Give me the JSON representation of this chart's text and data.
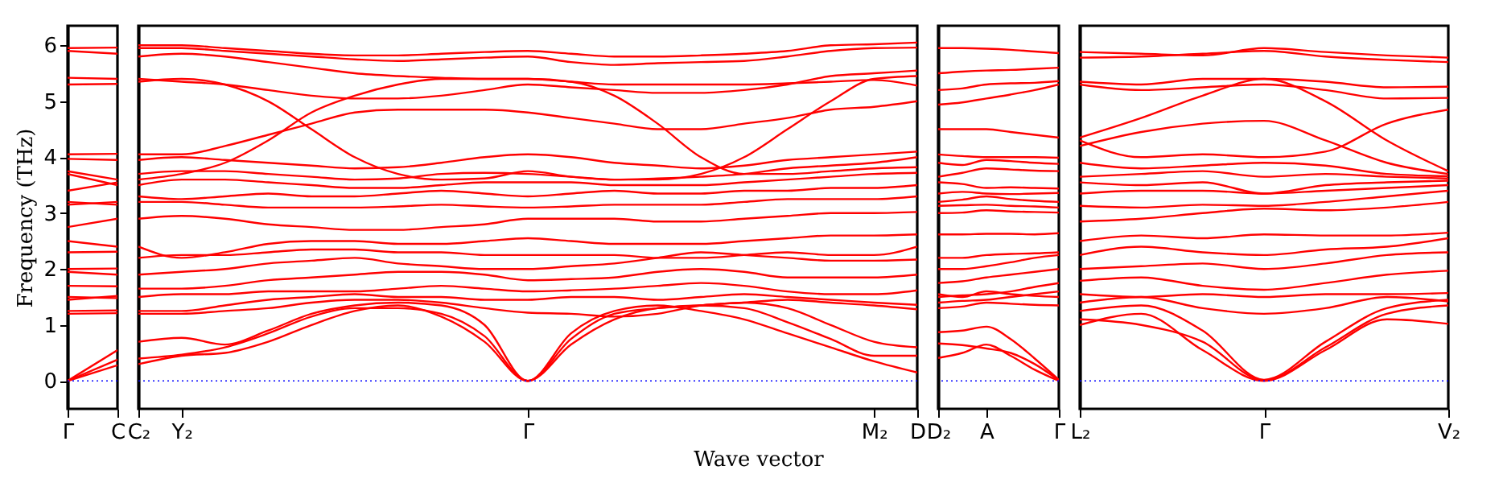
{
  "chart_data": [
    {
      "type": "line",
      "ylabel": "Frequency (THz)",
      "categories": [
        "Γ",
        "C"
      ],
      "ylim": [
        -0.5,
        6.35
      ],
      "yticks": [
        0,
        1,
        2,
        3,
        4,
        5,
        6
      ],
      "marker": "none",
      "ref_lines": [
        {
          "axis": "y",
          "value": 0,
          "color": "#0000ff",
          "line_style": "dotted"
        }
      ],
      "series": [
        {
          "color": "#ff0000",
          "values": [
            0,
            0.28
          ]
        },
        {
          "color": "#ff0000",
          "values": [
            0,
            0.38
          ]
        },
        {
          "color": "#ff0000",
          "values": [
            0,
            0.55
          ]
        },
        {
          "color": "#ff0000",
          "values": [
            1.2,
            1.21
          ]
        },
        {
          "color": "#ff0000",
          "values": [
            1.25,
            1.26
          ]
        },
        {
          "color": "#ff0000",
          "values": [
            1.45,
            1.52
          ]
        },
        {
          "color": "#ff0000",
          "values": [
            1.5,
            1.48
          ]
        },
        {
          "color": "#ff0000",
          "values": [
            1.7,
            1.69
          ]
        },
        {
          "color": "#ff0000",
          "values": [
            1.95,
            1.9
          ]
        },
        {
          "color": "#ff0000",
          "values": [
            2.0,
            2.01
          ]
        },
        {
          "color": "#ff0000",
          "values": [
            2.3,
            2.31
          ]
        },
        {
          "color": "#ff0000",
          "values": [
            2.5,
            2.4
          ]
        },
        {
          "color": "#ff0000",
          "values": [
            2.75,
            2.9
          ]
        },
        {
          "color": "#ff0000",
          "values": [
            3.15,
            3.2
          ]
        },
        {
          "color": "#ff0000",
          "values": [
            3.2,
            3.15
          ]
        },
        {
          "color": "#ff0000",
          "values": [
            3.4,
            3.55
          ]
        },
        {
          "color": "#ff0000",
          "values": [
            3.7,
            3.5
          ]
        },
        {
          "color": "#ff0000",
          "values": [
            3.75,
            3.6
          ]
        },
        {
          "color": "#ff0000",
          "values": [
            3.97,
            3.95
          ]
        },
        {
          "color": "#ff0000",
          "values": [
            4.05,
            4.06
          ]
        },
        {
          "color": "#ff0000",
          "values": [
            5.3,
            5.31
          ]
        },
        {
          "color": "#ff0000",
          "values": [
            5.42,
            5.4
          ]
        },
        {
          "color": "#ff0000",
          "values": [
            5.9,
            5.85
          ]
        },
        {
          "color": "#ff0000",
          "values": [
            5.95,
            5.96
          ]
        }
      ]
    },
    {
      "type": "line",
      "xlabel": "Wave vector",
      "tick_labels": "x",
      "categories": [
        "C₂",
        "Y₂",
        null,
        null,
        null,
        null,
        null,
        null,
        null,
        "Γ",
        null,
        null,
        null,
        null,
        null,
        null,
        null,
        "M₂",
        "D"
      ],
      "ylim": [
        -0.5,
        6.35
      ],
      "marker": "none",
      "ref_lines": [
        {
          "axis": "y",
          "value": 0,
          "color": "#0000ff",
          "line_style": "dotted"
        }
      ],
      "series": [
        {
          "color": "#ff0000",
          "values": [
            0.3,
            0.45,
            0.5,
            0.7,
            1.0,
            1.25,
            1.35,
            1.15,
            0.7,
            0,
            0.85,
            1.25,
            1.35,
            1.25,
            1.1,
            0.85,
            0.6,
            0.35,
            0.15
          ]
        },
        {
          "color": "#ff0000",
          "values": [
            0.4,
            0.47,
            0.6,
            0.85,
            1.15,
            1.3,
            1.3,
            1.2,
            0.8,
            0,
            0.75,
            1.2,
            1.3,
            1.35,
            1.3,
            1.05,
            0.75,
            0.45,
            0.45
          ]
        },
        {
          "color": "#ff0000",
          "values": [
            0.7,
            0.77,
            0.65,
            0.9,
            1.2,
            1.35,
            1.4,
            1.35,
            1.0,
            0,
            0.65,
            1.1,
            1.3,
            1.35,
            1.4,
            1.3,
            1.0,
            0.7,
            0.6
          ]
        },
        {
          "color": "#ff0000",
          "values": [
            1.2,
            1.2,
            1.25,
            1.3,
            1.4,
            1.45,
            1.45,
            1.4,
            1.3,
            1.22,
            1.2,
            1.15,
            1.2,
            1.35,
            1.4,
            1.45,
            1.4,
            1.35,
            1.28
          ]
        },
        {
          "color": "#ff0000",
          "values": [
            1.25,
            1.25,
            1.35,
            1.45,
            1.5,
            1.55,
            1.5,
            1.5,
            1.45,
            1.45,
            1.5,
            1.5,
            1.45,
            1.5,
            1.55,
            1.5,
            1.45,
            1.4,
            1.36
          ]
        },
        {
          "color": "#ff0000",
          "values": [
            1.5,
            1.55,
            1.55,
            1.6,
            1.6,
            1.6,
            1.65,
            1.7,
            1.65,
            1.6,
            1.62,
            1.65,
            1.7,
            1.75,
            1.7,
            1.6,
            1.55,
            1.55,
            1.62
          ]
        },
        {
          "color": "#ff0000",
          "values": [
            1.65,
            1.65,
            1.7,
            1.8,
            1.85,
            1.9,
            1.95,
            1.95,
            1.9,
            1.8,
            1.82,
            1.85,
            1.95,
            2.0,
            1.95,
            1.85,
            1.85,
            1.85,
            1.9
          ]
        },
        {
          "color": "#ff0000",
          "values": [
            1.9,
            1.95,
            2.0,
            2.1,
            2.15,
            2.2,
            2.1,
            2.05,
            2.0,
            2.0,
            2.05,
            2.1,
            2.2,
            2.3,
            2.25,
            2.2,
            2.15,
            2.15,
            2.17
          ]
        },
        {
          "color": "#ff0000",
          "values": [
            2.2,
            2.25,
            2.25,
            2.3,
            2.35,
            2.35,
            2.3,
            2.3,
            2.25,
            2.25,
            2.25,
            2.25,
            2.2,
            2.2,
            2.25,
            2.3,
            2.25,
            2.25,
            2.4
          ]
        },
        {
          "color": "#ff0000",
          "values": [
            2.4,
            2.2,
            2.3,
            2.45,
            2.5,
            2.5,
            2.45,
            2.45,
            2.5,
            2.55,
            2.5,
            2.45,
            2.45,
            2.45,
            2.5,
            2.55,
            2.6,
            2.6,
            2.62
          ]
        },
        {
          "color": "#ff0000",
          "values": [
            2.9,
            2.95,
            2.9,
            2.8,
            2.75,
            2.7,
            2.7,
            2.75,
            2.8,
            2.9,
            2.9,
            2.9,
            2.85,
            2.85,
            2.9,
            2.95,
            3.0,
            3.0,
            3.02
          ]
        },
        {
          "color": "#ff0000",
          "values": [
            3.2,
            3.2,
            3.15,
            3.1,
            3.1,
            3.1,
            3.12,
            3.15,
            3.12,
            3.1,
            3.12,
            3.15,
            3.15,
            3.15,
            3.2,
            3.25,
            3.25,
            3.25,
            3.3
          ]
        },
        {
          "color": "#ff0000",
          "values": [
            3.3,
            3.25,
            3.3,
            3.35,
            3.3,
            3.3,
            3.35,
            3.4,
            3.35,
            3.3,
            3.35,
            3.4,
            3.35,
            3.35,
            3.4,
            3.4,
            3.45,
            3.45,
            3.5
          ]
        },
        {
          "color": "#ff0000",
          "values": [
            3.5,
            3.6,
            3.6,
            3.55,
            3.5,
            3.45,
            3.45,
            3.5,
            3.55,
            3.55,
            3.55,
            3.5,
            3.5,
            3.5,
            3.55,
            3.6,
            3.65,
            3.7,
            3.72
          ]
        },
        {
          "color": "#ff0000",
          "values": [
            3.7,
            3.75,
            3.75,
            3.7,
            3.65,
            3.6,
            3.62,
            3.7,
            3.72,
            3.7,
            3.65,
            3.6,
            3.62,
            3.65,
            3.7,
            3.8,
            3.85,
            3.9,
            4.0
          ]
        },
        {
          "color": "#ff0000",
          "values": [
            3.95,
            4.0,
            3.95,
            3.9,
            3.85,
            3.8,
            3.82,
            3.9,
            4.0,
            4.05,
            4.0,
            3.9,
            3.85,
            3.8,
            3.85,
            3.95,
            4.0,
            4.05,
            4.1
          ]
        },
        {
          "color": "#ff0000",
          "values": [
            4.05,
            4.05,
            4.2,
            4.4,
            4.6,
            4.8,
            4.85,
            4.85,
            4.85,
            4.8,
            4.7,
            4.6,
            4.5,
            4.5,
            4.6,
            4.7,
            4.85,
            4.9,
            5.0
          ]
        },
        {
          "color": "#ff0000",
          "values": [
            5.35,
            5.4,
            5.3,
            5.0,
            4.5,
            4.0,
            3.7,
            3.6,
            3.62,
            3.75,
            3.65,
            3.6,
            3.6,
            3.7,
            4.0,
            4.5,
            5.0,
            5.4,
            5.45
          ]
        },
        {
          "color": "#ff0000",
          "values": [
            3.6,
            3.7,
            3.9,
            4.3,
            4.8,
            5.1,
            5.3,
            5.4,
            5.4,
            5.4,
            5.35,
            5.1,
            4.6,
            4.0,
            3.7,
            3.7,
            3.75,
            3.8,
            3.82
          ]
        },
        {
          "color": "#ff0000",
          "values": [
            5.4,
            5.35,
            5.3,
            5.2,
            5.1,
            5.05,
            5.05,
            5.1,
            5.2,
            5.3,
            5.25,
            5.2,
            5.15,
            5.15,
            5.2,
            5.3,
            5.45,
            5.5,
            5.55
          ]
        },
        {
          "color": "#ff0000",
          "values": [
            5.8,
            5.85,
            5.8,
            5.7,
            5.6,
            5.5,
            5.45,
            5.42,
            5.4,
            5.4,
            5.35,
            5.3,
            5.3,
            5.3,
            5.3,
            5.32,
            5.35,
            5.38,
            5.28
          ]
        },
        {
          "color": "#ff0000",
          "values": [
            5.95,
            5.95,
            5.9,
            5.85,
            5.8,
            5.75,
            5.72,
            5.75,
            5.78,
            5.8,
            5.7,
            5.65,
            5.68,
            5.7,
            5.72,
            5.8,
            5.9,
            5.95,
            5.96
          ]
        },
        {
          "color": "#ff0000",
          "values": [
            6.0,
            6.0,
            5.95,
            5.9,
            5.85,
            5.82,
            5.82,
            5.85,
            5.88,
            5.9,
            5.85,
            5.8,
            5.8,
            5.82,
            5.85,
            5.9,
            6.0,
            6.02,
            6.05
          ]
        }
      ]
    },
    {
      "type": "line",
      "tick_labels": "x",
      "categories": [
        "D₂",
        null,
        "A",
        null,
        null,
        "Γ"
      ],
      "ylim": [
        -0.5,
        6.35
      ],
      "marker": "none",
      "ref_lines": [
        {
          "axis": "y",
          "value": 0,
          "color": "#0000ff",
          "line_style": "dotted"
        }
      ],
      "series": [
        {
          "color": "#ff0000",
          "values": [
            0.41,
            0.5,
            0.65,
            0.45,
            0.2,
            0
          ]
        },
        {
          "color": "#ff0000",
          "values": [
            0.67,
            0.64,
            0.58,
            0.5,
            0.3,
            0.01
          ]
        },
        {
          "color": "#ff0000",
          "values": [
            0.87,
            0.9,
            0.97,
            0.75,
            0.4,
            0.02
          ]
        },
        {
          "color": "#ff0000",
          "values": [
            1.3,
            1.33,
            1.4,
            1.38,
            1.36,
            1.35
          ]
        },
        {
          "color": "#ff0000",
          "values": [
            1.4,
            1.43,
            1.45,
            1.5,
            1.55,
            1.6
          ]
        },
        {
          "color": "#ff0000",
          "values": [
            1.5,
            1.53,
            1.55,
            1.6,
            1.68,
            1.75
          ]
        },
        {
          "color": "#ff0000",
          "values": [
            1.55,
            1.5,
            1.6,
            1.55,
            1.52,
            1.5
          ]
        },
        {
          "color": "#ff0000",
          "values": [
            1.75,
            1.78,
            1.85,
            1.9,
            1.95,
            2.0
          ]
        },
        {
          "color": "#ff0000",
          "values": [
            2.0,
            2.0,
            2.05,
            2.12,
            2.2,
            2.25
          ]
        },
        {
          "color": "#ff0000",
          "values": [
            2.2,
            2.2,
            2.25,
            2.27,
            2.28,
            2.3
          ]
        },
        {
          "color": "#ff0000",
          "values": [
            2.62,
            2.62,
            2.63,
            2.63,
            2.62,
            2.64
          ]
        },
        {
          "color": "#ff0000",
          "values": [
            3.0,
            3.01,
            3.05,
            3.03,
            3.02,
            3.01
          ]
        },
        {
          "color": "#ff0000",
          "values": [
            3.13,
            3.14,
            3.15,
            3.13,
            3.12,
            3.1
          ]
        },
        {
          "color": "#ff0000",
          "values": [
            3.2,
            3.24,
            3.3,
            3.25,
            3.22,
            3.2
          ]
        },
        {
          "color": "#ff0000",
          "values": [
            3.35,
            3.38,
            3.35,
            3.34,
            3.35,
            3.36
          ]
        },
        {
          "color": "#ff0000",
          "values": [
            3.55,
            3.52,
            3.45,
            3.46,
            3.45,
            3.44
          ]
        },
        {
          "color": "#ff0000",
          "values": [
            3.65,
            3.72,
            3.8,
            3.78,
            3.76,
            3.75
          ]
        },
        {
          "color": "#ff0000",
          "values": [
            3.9,
            3.86,
            3.95,
            3.93,
            3.9,
            3.88
          ]
        },
        {
          "color": "#ff0000",
          "values": [
            4.05,
            4.02,
            4.0,
            4.0,
            4.0,
            3.99
          ]
        },
        {
          "color": "#ff0000",
          "values": [
            4.5,
            4.5,
            4.5,
            4.45,
            4.4,
            4.35
          ]
        },
        {
          "color": "#ff0000",
          "values": [
            4.94,
            4.98,
            5.05,
            5.12,
            5.2,
            5.3
          ]
        },
        {
          "color": "#ff0000",
          "values": [
            5.2,
            5.23,
            5.3,
            5.32,
            5.33,
            5.36
          ]
        },
        {
          "color": "#ff0000",
          "values": [
            5.5,
            5.53,
            5.55,
            5.56,
            5.58,
            5.6
          ]
        },
        {
          "color": "#ff0000",
          "values": [
            5.95,
            5.95,
            5.94,
            5.92,
            5.89,
            5.86
          ]
        }
      ]
    },
    {
      "type": "line",
      "tick_labels": "x",
      "categories": [
        "L₂",
        null,
        null,
        "Γ",
        null,
        null,
        "V₂"
      ],
      "ylim": [
        -0.5,
        6.35
      ],
      "marker": "none",
      "ref_lines": [
        {
          "axis": "y",
          "value": 0,
          "color": "#0000ff",
          "line_style": "dotted"
        }
      ],
      "series": [
        {
          "color": "#ff0000",
          "values": [
            1.0,
            1.2,
            0.55,
            0,
            0.55,
            1.1,
            1.02
          ]
        },
        {
          "color": "#ff0000",
          "values": [
            1.1,
            1.0,
            0.7,
            0.01,
            0.6,
            1.2,
            1.35
          ]
        },
        {
          "color": "#ff0000",
          "values": [
            1.25,
            1.35,
            0.9,
            0.02,
            0.7,
            1.3,
            1.45
          ]
        },
        {
          "color": "#ff0000",
          "values": [
            1.4,
            1.5,
            1.3,
            1.2,
            1.3,
            1.5,
            1.42
          ]
        },
        {
          "color": "#ff0000",
          "values": [
            1.55,
            1.5,
            1.55,
            1.5,
            1.55,
            1.55,
            1.57
          ]
        },
        {
          "color": "#ff0000",
          "values": [
            1.79,
            1.85,
            1.7,
            1.63,
            1.75,
            1.9,
            1.97
          ]
        },
        {
          "color": "#ff0000",
          "values": [
            2.0,
            2.05,
            2.1,
            2.0,
            2.1,
            2.25,
            2.3
          ]
        },
        {
          "color": "#ff0000",
          "values": [
            2.25,
            2.4,
            2.3,
            2.25,
            2.35,
            2.4,
            2.55
          ]
        },
        {
          "color": "#ff0000",
          "values": [
            2.5,
            2.6,
            2.55,
            2.62,
            2.6,
            2.6,
            2.65
          ]
        },
        {
          "color": "#ff0000",
          "values": [
            2.85,
            2.9,
            3.0,
            3.08,
            3.05,
            3.1,
            3.2
          ]
        },
        {
          "color": "#ff0000",
          "values": [
            3.13,
            3.1,
            3.15,
            3.13,
            3.2,
            3.3,
            3.4
          ]
        },
        {
          "color": "#ff0000",
          "values": [
            3.35,
            3.4,
            3.4,
            3.35,
            3.4,
            3.45,
            3.5
          ]
        },
        {
          "color": "#ff0000",
          "values": [
            3.55,
            3.5,
            3.55,
            3.35,
            3.5,
            3.55,
            3.58
          ]
        },
        {
          "color": "#ff0000",
          "values": [
            3.65,
            3.7,
            3.75,
            3.65,
            3.7,
            3.65,
            3.62
          ]
        },
        {
          "color": "#ff0000",
          "values": [
            3.9,
            3.8,
            3.85,
            3.9,
            3.85,
            3.7,
            3.66
          ]
        },
        {
          "color": "#ff0000",
          "values": [
            4.2,
            4.45,
            4.6,
            4.65,
            4.3,
            3.9,
            3.7
          ]
        },
        {
          "color": "#ff0000",
          "values": [
            4.3,
            4.0,
            4.05,
            4.0,
            4.1,
            4.6,
            4.85
          ]
        },
        {
          "color": "#ff0000",
          "values": [
            4.35,
            4.7,
            5.1,
            5.4,
            5.0,
            4.3,
            3.75
          ]
        },
        {
          "color": "#ff0000",
          "values": [
            5.3,
            5.2,
            5.25,
            5.3,
            5.2,
            5.05,
            5.06
          ]
        },
        {
          "color": "#ff0000",
          "values": [
            5.35,
            5.3,
            5.4,
            5.4,
            5.35,
            5.25,
            5.26
          ]
        },
        {
          "color": "#ff0000",
          "values": [
            5.78,
            5.8,
            5.85,
            5.9,
            5.8,
            5.74,
            5.7
          ]
        },
        {
          "color": "#ff0000",
          "values": [
            5.88,
            5.85,
            5.82,
            5.95,
            5.88,
            5.82,
            5.78
          ]
        }
      ]
    }
  ]
}
